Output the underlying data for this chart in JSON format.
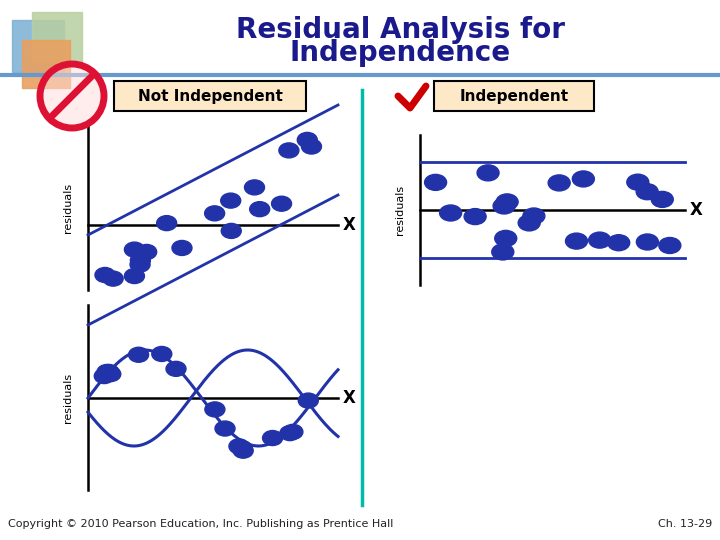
{
  "title_line1": "Residual Analysis for",
  "title_line2": "Independence",
  "title_color": "#1a1a8c",
  "title_fontsize": 20,
  "background_color": "#ffffff",
  "dot_color": "#2233aa",
  "line_color": "#2233aa",
  "axis_color": "#000000",
  "box_color": "#fde9c8",
  "box_edge_color": "#000000",
  "copyright_text": "Copyright © 2010 Pearson Education, Inc. Publishing as Prentice Hall",
  "chapter_text": "Ch. 13-29",
  "footer_fontsize": 8,
  "separator_color": "#00bbaa",
  "check_color": "#cc0000",
  "no_symbol_color": "#dd1133",
  "header_line_color": "#6699cc",
  "sq1_color": "#7ab0d4",
  "sq2_color": "#b8cfa0",
  "sq3_color": "#e8a060"
}
